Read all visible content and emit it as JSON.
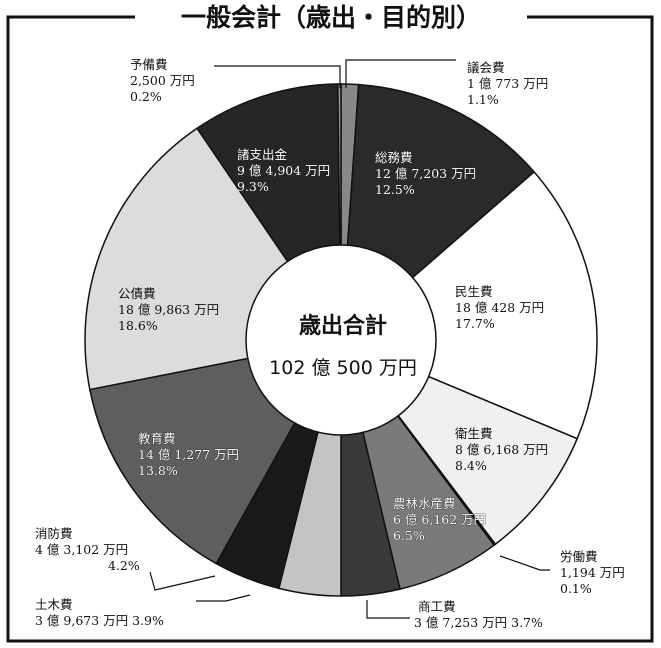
{
  "chart_data": {
    "type": "pie",
    "title": "一般会計（歳出・目的別）",
    "center_title": "歳出合計",
    "center_total": "102 億 500 万円",
    "unit": "万円",
    "slices": [
      {
        "name": "議会費",
        "amount": "1 億 773 万円",
        "percent": "1.1%",
        "value": 1.1,
        "color": "#888888",
        "text_color": "#111111"
      },
      {
        "name": "総務費",
        "amount": "12 億 7,203 万円",
        "percent": "12.5%",
        "value": 12.5,
        "color": "#2a2a2a",
        "text_color": "#ffffff"
      },
      {
        "name": "民生費",
        "amount": "18 億 428 万円",
        "percent": "17.7%",
        "value": 17.7,
        "color": "#ffffff",
        "text_color": "#111111"
      },
      {
        "name": "衛生費",
        "amount": "8 億 6,168 万円",
        "percent": "8.4%",
        "value": 8.4,
        "color": "#f0f0f0",
        "text_color": "#111111"
      },
      {
        "name": "労働費",
        "amount": "1,194 万円",
        "percent": "0.1%",
        "value": 0.1,
        "color": "#cccccc",
        "text_color": "#111111"
      },
      {
        "name": "農林水産費",
        "amount": "6 億 6,162 万円",
        "percent": "6.5%",
        "value": 6.5,
        "color": "#7a7a7a",
        "text_color": "#ffffff"
      },
      {
        "name": "商工費",
        "amount": "3 億 7,253 万円",
        "percent": "3.7%",
        "value": 3.7,
        "color": "#3a3a3a",
        "text_color": "#111111"
      },
      {
        "name": "土木費",
        "amount": "3 億 9,673 万円",
        "percent": "3.9%",
        "value": 3.9,
        "color": "#c4c4c4",
        "text_color": "#111111"
      },
      {
        "name": "消防費",
        "amount": "4 億 3,102 万円",
        "percent": "4.2%",
        "value": 4.2,
        "color": "#1a1a1a",
        "text_color": "#111111"
      },
      {
        "name": "教育費",
        "amount": "14 億 1,277 万円",
        "percent": "13.8%",
        "value": 13.8,
        "color": "#5e5e5e",
        "text_color": "#ffffff"
      },
      {
        "name": "公債費",
        "amount": "18 億 9,863 万円",
        "percent": "18.6%",
        "value": 18.6,
        "color": "#dcdcdc",
        "text_color": "#111111"
      },
      {
        "name": "諸支出金",
        "amount": "9 億 4,904 万円",
        "percent": "9.3%",
        "value": 9.3,
        "color": "#262626",
        "text_color": "#ffffff"
      },
      {
        "name": "予備費",
        "amount": "2,500 万円",
        "percent": "0.2%",
        "value": 0.2,
        "color": "#999999",
        "text_color": "#111111"
      }
    ]
  }
}
